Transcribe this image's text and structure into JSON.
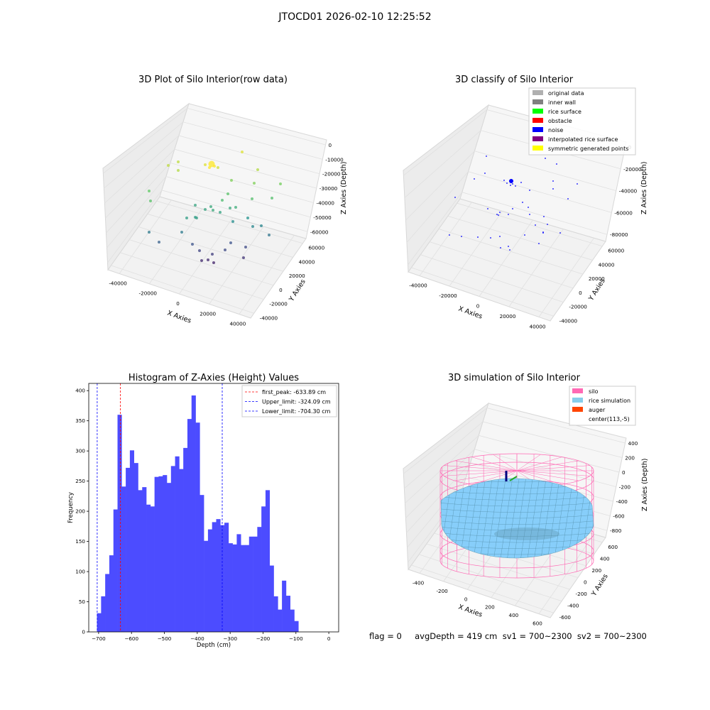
{
  "figure": {
    "title": "JTOCD01 2026-02-10 12:25:52",
    "footer": "flag = 0     avgDepth = 419 cm  sv1 = 700~2300  sv2 = 700~2300"
  },
  "colors": {
    "pane": "#f2f2f2",
    "pane_edge": "#d8d8d8",
    "grid": "#e0e0e0",
    "hist_bar": "#4c4cff",
    "first_peak": "#ff0000",
    "limits": "#0000ff",
    "silo": "#ff69b4",
    "rice": "#87cefa",
    "auger": "#ff4500",
    "noise": "#0000ff"
  },
  "chart_data": [
    {
      "id": "raw3d",
      "type": "scatter",
      "title": "3D Plot of Silo Interior(row data)",
      "xlabel": "X Axies",
      "ylabel": "Y Axies",
      "zlabel": "Z Axies (Depth)",
      "x_ticks": [
        "-40000",
        "-20000",
        "0",
        "20000",
        "40000"
      ],
      "y_ticks": [
        "-40000",
        "-20000",
        "0",
        "20000",
        "40000",
        "60000"
      ],
      "z_ticks": [
        "0",
        "-10000",
        "-20000",
        "-30000",
        "-40000",
        "-50000",
        "-60000"
      ],
      "colormap": "viridis"
    },
    {
      "id": "classify3d",
      "type": "scatter",
      "title": "3D classify of Silo Interior",
      "xlabel": "X Axies",
      "ylabel": "Y Axies",
      "zlabel": "Z Axies (Depth)",
      "x_ticks": [
        "-40000",
        "-20000",
        "0",
        "20000",
        "40000"
      ],
      "y_ticks": [
        "-40000",
        "-20000",
        "0",
        "20000",
        "40000",
        "60000"
      ],
      "z_ticks": [
        "0",
        "-20000",
        "-40000",
        "-60000",
        "-80000"
      ],
      "legend_position": "upper-right",
      "legend": [
        {
          "label": "original data",
          "color": "#b0b0b0"
        },
        {
          "label": "inner wall",
          "color": "#808080"
        },
        {
          "label": "rice surface",
          "color": "#00ff00"
        },
        {
          "label": "obstacle",
          "color": "#ff0000"
        },
        {
          "label": "noise",
          "color": "#0000ff"
        },
        {
          "label": "interpolated rice surface",
          "color": "#800080"
        },
        {
          "label": "symmetric generated points",
          "color": "#ffff00"
        }
      ]
    },
    {
      "id": "hist",
      "type": "bar",
      "title": "Histogram of Z-Axies (Height) Values",
      "xlabel": "Depth (cm)",
      "ylabel": "Frequency",
      "xlim": [
        -730,
        30
      ],
      "ylim": [
        0,
        412
      ],
      "x_ticks": [
        -700,
        -600,
        -500,
        -400,
        -300,
        -200,
        -100,
        0
      ],
      "y_ticks": [
        0,
        50,
        100,
        150,
        200,
        250,
        300,
        350,
        400
      ],
      "bin_start": -705,
      "bin_width": 12.5,
      "values": [
        31,
        59,
        96,
        127,
        203,
        360,
        241,
        272,
        301,
        280,
        235,
        240,
        211,
        208,
        257,
        258,
        260,
        247,
        275,
        291,
        270,
        305,
        353,
        392,
        347,
        227,
        151,
        170,
        182,
        187,
        177,
        181,
        147,
        145,
        162,
        144,
        144,
        158,
        158,
        174,
        208,
        235,
        110,
        59,
        37,
        85,
        60,
        37,
        18
      ],
      "lines": [
        {
          "label": "first_peak: -633.89 cm",
          "x": -633.89,
          "color": "#ff0000"
        },
        {
          "label": "Upper_limit: -324.09 cm",
          "x": -324.09,
          "color": "#0000ff"
        },
        {
          "label": "Lower_limit: -704.30 cm",
          "x": -704.3,
          "color": "#0000ff"
        }
      ],
      "legend_position": "upper-right"
    },
    {
      "id": "sim3d",
      "type": "surface",
      "title": "3D simulation of Silo Interior",
      "xlabel": "X Axies",
      "ylabel": "Y Axies",
      "zlabel": "Z Axies (Depth)",
      "x_ticks": [
        "-400",
        "-200",
        "0",
        "200",
        "400",
        "600"
      ],
      "y_ticks": [
        "-600",
        "-400",
        "-200",
        "0",
        "200",
        "400",
        "600"
      ],
      "z_ticks": [
        "400",
        "200",
        "0",
        "-200",
        "-400",
        "-600",
        "-800"
      ],
      "legend_position": "upper-right",
      "legend": [
        {
          "label": "silo",
          "color": "#ff69b4"
        },
        {
          "label": "rice simulation",
          "color": "#87ceeb"
        },
        {
          "label": "auger",
          "color": "#ff4500"
        },
        {
          "label": "center(113,-5)",
          "color": "#ffffff"
        }
      ]
    }
  ]
}
